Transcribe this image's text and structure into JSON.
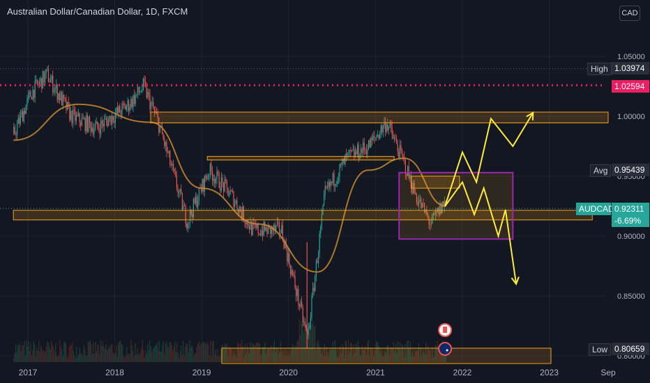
{
  "header": {
    "title": "Australian Dollar/Canadian Dollar, 1D, FXCM",
    "currency_button": "CAD"
  },
  "scale_labels": {
    "high_label": "High",
    "high_value": "1.03974",
    "red_level_value": "1.02594",
    "avg_label": "Avg",
    "avg_value": "0.95439",
    "symbol_label": "AUDCAD",
    "last_value": "0.92311",
    "change": "-6.69%",
    "low_label": "Low",
    "low_value": "0.80659"
  },
  "colors": {
    "background": "#131722",
    "candle_up": "#26a69a",
    "candle_down": "#ef5350",
    "ma": "#c98a2d",
    "zone": "#f7a21b",
    "projection": "#ffeb3b",
    "red_level": "#e91e63",
    "purple_box": "#9c27b0"
  },
  "chart_data": {
    "type": "candlestick",
    "symbol": "AUDCAD",
    "timeframe": "1D",
    "x_axis_ticks": [
      "2017",
      "2018",
      "2019",
      "2020",
      "2021",
      "2022",
      "2023",
      "Sep"
    ],
    "y_axis_ticks": [
      "1.05000",
      "1.00000",
      "0.95000",
      "0.90000",
      "0.85000",
      "0.80000"
    ],
    "ylim": [
      0.795,
      1.075
    ],
    "price_path": [
      [
        "2016-11-01",
        0.985
      ],
      [
        "2017-01-15",
        1.02
      ],
      [
        "2017-03-20",
        1.035
      ],
      [
        "2017-07-01",
        1.0
      ],
      [
        "2017-10-15",
        0.99
      ],
      [
        "2018-03-01",
        1.01
      ],
      [
        "2018-05-01",
        1.025
      ],
      [
        "2018-07-01",
        0.995
      ],
      [
        "2018-10-31",
        0.912
      ],
      [
        "2019-01-31",
        0.955
      ],
      [
        "2019-05-01",
        0.935
      ],
      [
        "2019-08-01",
        0.905
      ],
      [
        "2019-12-01",
        0.905
      ],
      [
        "2020-03-19",
        0.815
      ],
      [
        "2020-06-01",
        0.935
      ],
      [
        "2020-09-01",
        0.965
      ],
      [
        "2020-12-01",
        0.975
      ],
      [
        "2021-02-15",
        0.995
      ],
      [
        "2021-05-01",
        0.96
      ],
      [
        "2021-06-15",
        0.935
      ],
      [
        "2021-08-20",
        0.91
      ],
      [
        "2021-10-15",
        0.928
      ],
      [
        "2021-10-25",
        0.923
      ]
    ],
    "moving_average": [
      [
        "2016-11-01",
        0.98
      ],
      [
        "2017-08-01",
        1.01
      ],
      [
        "2018-06-01",
        0.995
      ],
      [
        "2019-01-01",
        0.94
      ],
      [
        "2019-09-01",
        0.91
      ],
      [
        "2020-05-01",
        0.87
      ],
      [
        "2020-12-01",
        0.955
      ],
      [
        "2021-05-01",
        0.965
      ],
      [
        "2021-10-25",
        0.925
      ]
    ],
    "volume_shown": true,
    "horizontal_levels": {
      "red_dotted": 1.02594,
      "last": 0.92311,
      "average": 0.95439
    },
    "zones": [
      {
        "from": "2018-06-01",
        "to": "scale",
        "low": 0.9945,
        "high": 1.0035
      },
      {
        "from": "2019-01-25",
        "to": "2021-03-20",
        "low": 0.9635,
        "high": 0.9665
      },
      {
        "from": "2016-11-01",
        "to": "2023-07-01",
        "low": 0.9135,
        "high": 0.9215
      },
      {
        "from": "2021-06-01",
        "to": "2021-12-20",
        "low": 0.94,
        "high": 0.95
      }
    ],
    "purple_box": {
      "from": "2021-04-10",
      "to": "2022-08-01",
      "low": 0.8975,
      "high": 0.953
    },
    "projections": [
      {
        "points": [
          [
            "2021-10-20",
            0.925
          ],
          [
            "2022-01-01",
            0.97
          ],
          [
            "2022-03-01",
            0.945
          ],
          [
            "2022-05-01",
            0.998
          ],
          [
            "2022-08-01",
            0.975
          ],
          [
            "2022-10-25",
            1.003
          ]
        ]
      },
      {
        "points": [
          [
            "2021-10-20",
            0.925
          ],
          [
            "2022-01-01",
            0.945
          ],
          [
            "2022-02-20",
            0.918
          ],
          [
            "2022-04-01",
            0.94
          ],
          [
            "2022-06-01",
            0.9
          ],
          [
            "2022-07-01",
            0.922
          ],
          [
            "2022-08-15",
            0.86
          ]
        ]
      }
    ],
    "event_markers": [
      "Canada",
      "Australia"
    ]
  }
}
